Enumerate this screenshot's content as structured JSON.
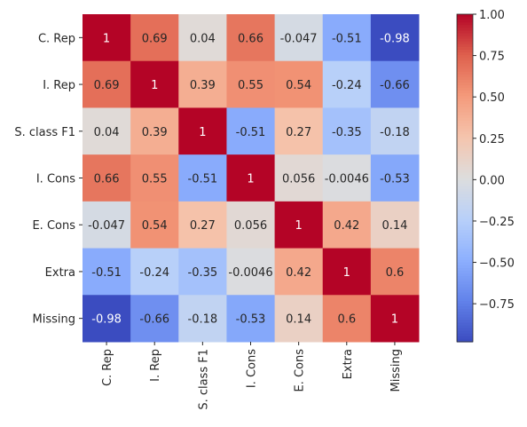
{
  "chart_data": {
    "type": "heatmap",
    "title": "",
    "xlabel": "",
    "ylabel": "",
    "rows": [
      "C. Rep",
      "I. Rep",
      "S. class F1",
      "I. Cons",
      "E. Cons",
      "Extra",
      "Missing"
    ],
    "columns": [
      "C. Rep",
      "I. Rep",
      "S. class F1",
      "I. Cons",
      "E. Cons",
      "Extra",
      "Missing"
    ],
    "values": [
      [
        1,
        0.69,
        0.04,
        0.66,
        -0.047,
        -0.51,
        -0.98
      ],
      [
        0.69,
        1,
        0.39,
        0.55,
        0.54,
        -0.24,
        -0.66
      ],
      [
        0.04,
        0.39,
        1,
        -0.51,
        0.27,
        -0.35,
        -0.18
      ],
      [
        0.66,
        0.55,
        -0.51,
        1,
        0.056,
        -0.0046,
        -0.53
      ],
      [
        -0.047,
        0.54,
        0.27,
        0.056,
        1,
        0.42,
        0.14
      ],
      [
        -0.51,
        -0.24,
        -0.35,
        -0.0046,
        0.42,
        1,
        0.6
      ],
      [
        -0.98,
        -0.66,
        -0.18,
        -0.53,
        0.14,
        0.6,
        1
      ]
    ],
    "cell_labels": [
      [
        "1",
        "0.69",
        "0.04",
        "0.66",
        "-0.047",
        "-0.51",
        "-0.98"
      ],
      [
        "0.69",
        "1",
        "0.39",
        "0.55",
        "0.54",
        "-0.24",
        "-0.66"
      ],
      [
        "0.04",
        "0.39",
        "1",
        "-0.51",
        "0.27",
        "-0.35",
        "-0.18"
      ],
      [
        "0.66",
        "0.55",
        "-0.51",
        "1",
        "0.056",
        "-0.0046",
        "-0.53"
      ],
      [
        "-0.047",
        "0.54",
        "0.27",
        "0.056",
        "1",
        "0.42",
        "0.14"
      ],
      [
        "-0.51",
        "-0.24",
        "-0.35",
        "-0.0046",
        "0.42",
        "1",
        "0.6"
      ],
      [
        "-0.98",
        "-0.66",
        "-0.18",
        "-0.53",
        "0.14",
        "0.6",
        "1"
      ]
    ],
    "colormap": "coolwarm",
    "vmin": -0.98,
    "vmax": 1,
    "colorbar": {
      "ticks": [
        1.0,
        0.75,
        0.5,
        0.25,
        0.0,
        -0.25,
        -0.5,
        -0.75
      ],
      "tick_labels": [
        "1.00",
        "0.75",
        "0.50",
        "0.25",
        "0.00",
        "−0.25",
        "−0.50",
        "−0.75"
      ]
    },
    "grid": false,
    "legend": "colorbar-right"
  }
}
